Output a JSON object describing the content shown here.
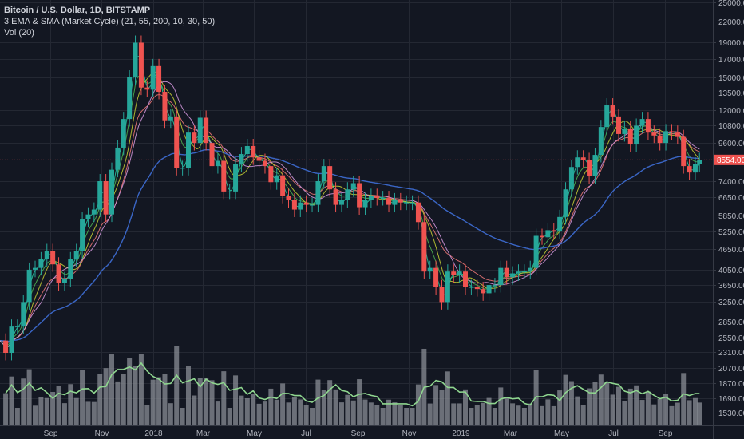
{
  "legend": {
    "symbol": "Bitcoin / U.S. Dollar, 1D, BITSTAMP",
    "indicator": "3 EMA & SMA (Market Cycle) (21, 55, 200, 10, 30, 50)",
    "volume": "Vol (20)"
  },
  "colors": {
    "background": "#131722",
    "grid": "#242833",
    "up": "#26a69a",
    "down": "#ef5350",
    "last_price": "#ef5350",
    "volume": "#8a8d96",
    "volume_ma": "#8fd68f",
    "ema21": "#4caf50",
    "ema55": "#e57373",
    "ema200": "#3f6fd8",
    "sma10": "#26c6a0",
    "sma30": "#c0ca33",
    "sma50": "#ce93d8"
  },
  "chart_data": {
    "type": "candlestick",
    "title": "Bitcoin / U.S. Dollar, 1D, BITSTAMP",
    "y_scale": "log",
    "ylim": [
      1450,
      25000
    ],
    "grid": true,
    "last_price": "8554.00",
    "y_ticks": [
      "25000.00",
      "22000.00",
      "19000.00",
      "17000.00",
      "15000.00",
      "13500.00",
      "12000.00",
      "10800.00",
      "9600.00",
      "7400.00",
      "6650.00",
      "5850.00",
      "5250.00",
      "4650.00",
      "4050.00",
      "3650.00",
      "3250.00",
      "2850.00",
      "2550.00",
      "2310.00",
      "2070.00",
      "1870.00",
      "1690.00",
      "1530.00"
    ],
    "x_ticks": [
      {
        "label": "Sep",
        "date": "2017-09-01"
      },
      {
        "label": "Nov",
        "date": "2017-11-01"
      },
      {
        "label": "2018",
        "date": "2018-01-01"
      },
      {
        "label": "Mar",
        "date": "2018-03-01"
      },
      {
        "label": "May",
        "date": "2018-05-01"
      },
      {
        "label": "Jul",
        "date": "2018-07-01"
      },
      {
        "label": "Sep",
        "date": "2018-09-01"
      },
      {
        "label": "Nov",
        "date": "2018-11-01"
      },
      {
        "label": "2019",
        "date": "2019-01-01"
      },
      {
        "label": "Mar",
        "date": "2019-03-01"
      },
      {
        "label": "May",
        "date": "2019-05-01"
      },
      {
        "label": "Jul",
        "date": "2019-07-01"
      },
      {
        "label": "Sep",
        "date": "2019-09-01"
      }
    ],
    "series": [
      {
        "name": "Bitcoin / U.S. Dollar",
        "points": [
          [
            "2017-07-03",
            2500
          ],
          [
            "2017-07-10",
            2300
          ],
          [
            "2017-07-17",
            2750
          ],
          [
            "2017-07-24",
            2750
          ],
          [
            "2017-07-31",
            3250
          ],
          [
            "2017-08-07",
            4050
          ],
          [
            "2017-08-14",
            4100
          ],
          [
            "2017-08-21",
            4350
          ],
          [
            "2017-08-28",
            4600
          ],
          [
            "2017-09-04",
            4200
          ],
          [
            "2017-09-11",
            3700
          ],
          [
            "2017-09-18",
            3800
          ],
          [
            "2017-09-25",
            4350
          ],
          [
            "2017-10-02",
            4600
          ],
          [
            "2017-10-09",
            5700
          ],
          [
            "2017-10-16",
            5900
          ],
          [
            "2017-10-23",
            6100
          ],
          [
            "2017-10-30",
            7400
          ],
          [
            "2017-11-06",
            5900
          ],
          [
            "2017-11-13",
            8000
          ],
          [
            "2017-11-20",
            9300
          ],
          [
            "2017-11-27",
            11300
          ],
          [
            "2017-12-04",
            15000
          ],
          [
            "2017-12-11",
            19000
          ],
          [
            "2017-12-18",
            14000
          ],
          [
            "2017-12-25",
            13800
          ],
          [
            "2018-01-01",
            16200
          ],
          [
            "2018-01-08",
            13600
          ],
          [
            "2018-01-15",
            11200
          ],
          [
            "2018-01-22",
            11500
          ],
          [
            "2018-01-29",
            8100
          ],
          [
            "2018-02-05",
            8100
          ],
          [
            "2018-02-12",
            10300
          ],
          [
            "2018-02-19",
            9600
          ],
          [
            "2018-02-26",
            11400
          ],
          [
            "2018-03-05",
            9600
          ],
          [
            "2018-03-12",
            8200
          ],
          [
            "2018-03-19",
            8500
          ],
          [
            "2018-03-26",
            6900
          ],
          [
            "2018-04-02",
            6900
          ],
          [
            "2018-04-09",
            8300
          ],
          [
            "2018-04-16",
            8900
          ],
          [
            "2018-04-23",
            9400
          ],
          [
            "2018-04-30",
            8700
          ],
          [
            "2018-05-07",
            8500
          ],
          [
            "2018-05-14",
            8200
          ],
          [
            "2018-05-21",
            7350
          ],
          [
            "2018-05-28",
            7700
          ],
          [
            "2018-06-04",
            6700
          ],
          [
            "2018-06-11",
            6500
          ],
          [
            "2018-06-18",
            6100
          ],
          [
            "2018-06-25",
            6400
          ],
          [
            "2018-07-02",
            6300
          ],
          [
            "2018-07-09",
            6300
          ],
          [
            "2018-07-16",
            7400
          ],
          [
            "2018-07-23",
            8200
          ],
          [
            "2018-07-30",
            7000
          ],
          [
            "2018-08-06",
            6300
          ],
          [
            "2018-08-13",
            6500
          ],
          [
            "2018-08-20",
            7000
          ],
          [
            "2018-08-27",
            7300
          ],
          [
            "2018-09-03",
            6200
          ],
          [
            "2018-09-10",
            6500
          ],
          [
            "2018-09-17",
            6700
          ],
          [
            "2018-09-24",
            6600
          ],
          [
            "2018-10-01",
            6600
          ],
          [
            "2018-10-08",
            6300
          ],
          [
            "2018-10-15",
            6500
          ],
          [
            "2018-10-22",
            6400
          ],
          [
            "2018-10-29",
            6400
          ],
          [
            "2018-11-05",
            6400
          ],
          [
            "2018-11-12",
            5600
          ],
          [
            "2018-11-19",
            4000
          ],
          [
            "2018-11-26",
            4100
          ],
          [
            "2018-12-03",
            3600
          ],
          [
            "2018-12-10",
            3250
          ],
          [
            "2018-12-17",
            4000
          ],
          [
            "2018-12-24",
            3900
          ],
          [
            "2018-12-31",
            4000
          ],
          [
            "2019-01-07",
            3600
          ],
          [
            "2019-01-14",
            3600
          ],
          [
            "2019-01-21",
            3550
          ],
          [
            "2019-01-28",
            3450
          ],
          [
            "2019-02-04",
            3650
          ],
          [
            "2019-02-11",
            3650
          ],
          [
            "2019-02-18",
            4100
          ],
          [
            "2019-02-25",
            3850
          ],
          [
            "2019-03-04",
            3950
          ],
          [
            "2019-03-11",
            4000
          ],
          [
            "2019-03-18",
            4000
          ],
          [
            "2019-03-25",
            4100
          ],
          [
            "2019-04-01",
            5100
          ],
          [
            "2019-04-08",
            5050
          ],
          [
            "2019-04-15",
            5300
          ],
          [
            "2019-04-22",
            5250
          ],
          [
            "2019-04-29",
            5800
          ],
          [
            "2019-05-06",
            7000
          ],
          [
            "2019-05-13",
            8150
          ],
          [
            "2019-05-20",
            8700
          ],
          [
            "2019-05-27",
            8550
          ],
          [
            "2019-06-03",
            7650
          ],
          [
            "2019-06-10",
            8850
          ],
          [
            "2019-06-17",
            10700
          ],
          [
            "2019-06-24",
            12400
          ],
          [
            "2019-07-01",
            11500
          ],
          [
            "2019-07-08",
            10200
          ],
          [
            "2019-07-15",
            10600
          ],
          [
            "2019-07-22",
            9500
          ],
          [
            "2019-07-29",
            10800
          ],
          [
            "2019-08-05",
            11300
          ],
          [
            "2019-08-12",
            10300
          ],
          [
            "2019-08-19",
            10100
          ],
          [
            "2019-08-26",
            9600
          ],
          [
            "2019-09-02",
            10400
          ],
          [
            "2019-09-09",
            10300
          ],
          [
            "2019-09-16",
            10000
          ],
          [
            "2019-09-23",
            8200
          ],
          [
            "2019-09-30",
            7850
          ],
          [
            "2019-10-07",
            8300
          ],
          [
            "2019-10-12",
            8554
          ]
        ]
      }
    ],
    "indicators": [
      {
        "type": "EMA",
        "period": 21,
        "color_key": "ema21"
      },
      {
        "type": "EMA",
        "period": 55,
        "color_key": "ema55"
      },
      {
        "type": "EMA",
        "period": 200,
        "color_key": "ema200"
      },
      {
        "type": "SMA",
        "period": 10,
        "color_key": "sma10"
      },
      {
        "type": "SMA",
        "period": 30,
        "color_key": "sma30"
      },
      {
        "type": "SMA",
        "period": 50,
        "color_key": "sma50"
      },
      {
        "type": "Volume MA",
        "period": 20,
        "color_key": "volume_ma"
      }
    ]
  }
}
